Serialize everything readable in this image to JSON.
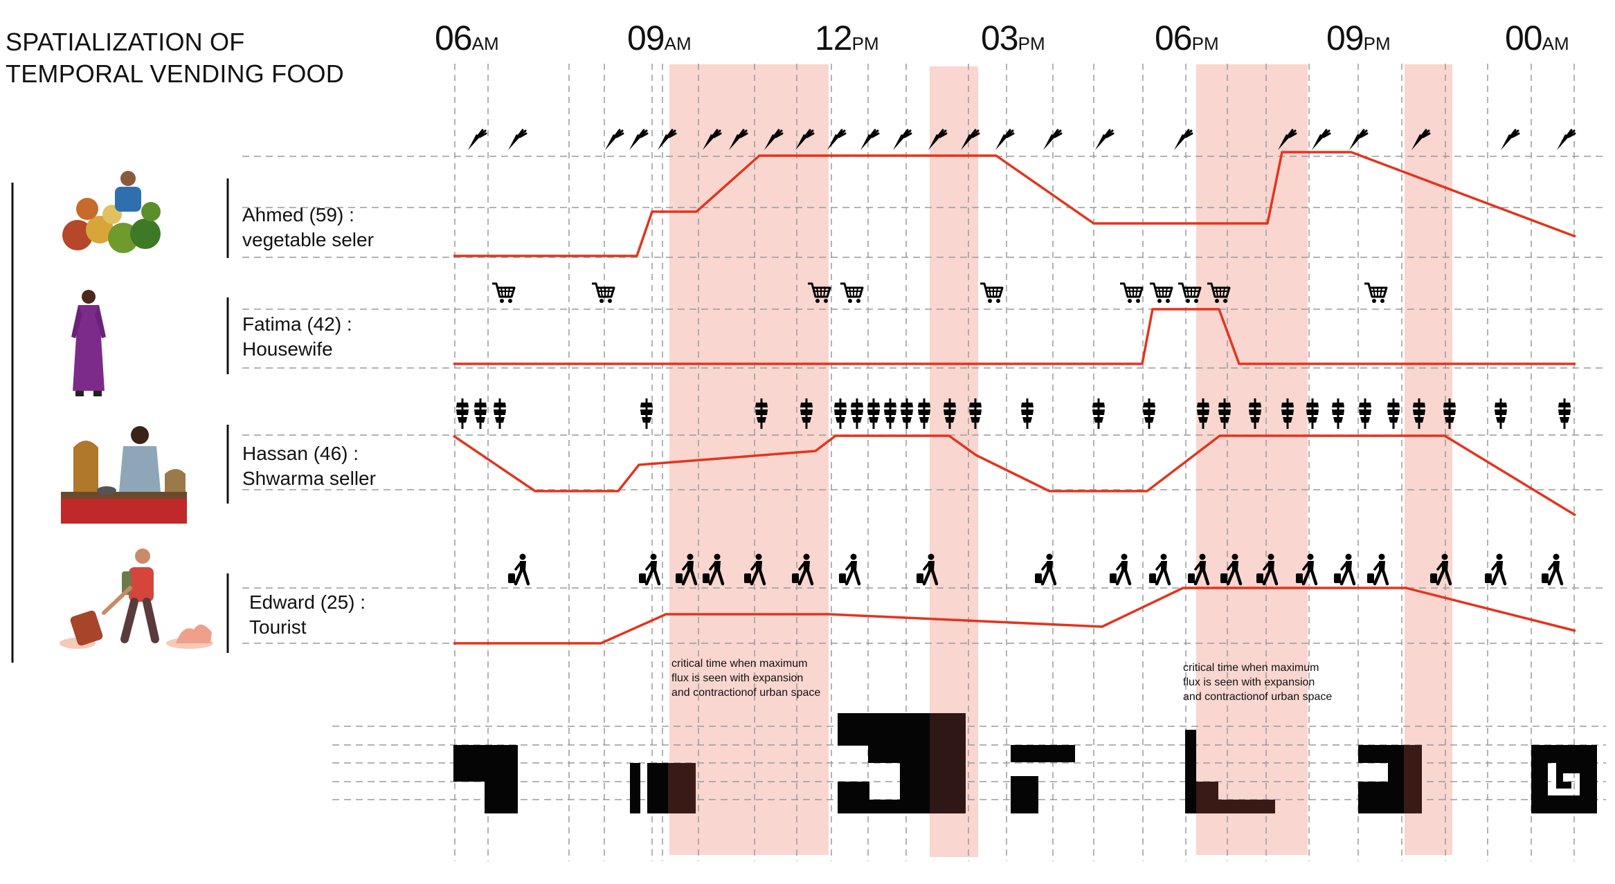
{
  "title": "SPATIALIZATION OF\nTEMPORAL VENDING FOOD",
  "time_axis": [
    {
      "num": "06",
      "suffix": "AM"
    },
    {
      "num": "09",
      "suffix": "AM"
    },
    {
      "num": "12",
      "suffix": "PM"
    },
    {
      "num": "03",
      "suffix": "PM"
    },
    {
      "num": "06",
      "suffix": "PM"
    },
    {
      "num": "09",
      "suffix": "PM"
    },
    {
      "num": "00",
      "suffix": "AM"
    }
  ],
  "people": [
    {
      "label": "Ahmed (59) :\nvegetable seler",
      "icon": "carrot-icon",
      "picture": "vegetable-seller-photo"
    },
    {
      "label": "Fatima (42) :\nHousewife",
      "icon": "shopping-cart-icon",
      "picture": "housewife-photo"
    },
    {
      "label": "Hassan (46) :\nShwarma seller",
      "icon": "shawarma-icon",
      "picture": "shawarma-seller-photo"
    },
    {
      "label": "Edward (25) :\nTourist",
      "icon": "tourist-with-luggage-icon",
      "picture": "tourist-illustration"
    }
  ],
  "notes": [
    "critical time when  maximum\nflux is seen with expansion\nand contractionof urban space",
    "critical time when  maximum\nflux is seen with expansion\nand contractionof urban space"
  ],
  "colors": {
    "line": "#e2351e",
    "highlight": "#f9d6d0",
    "grid": "#9a9a9a",
    "block": "#050505",
    "block_overlap": "#3a1a17"
  }
}
